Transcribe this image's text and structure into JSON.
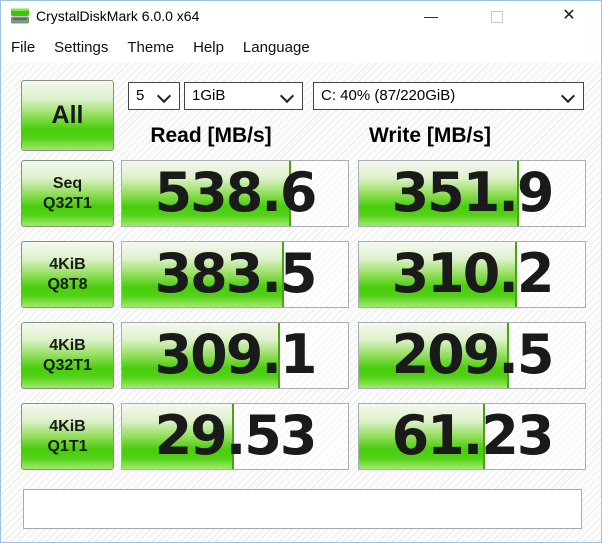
{
  "window": {
    "title": "CrystalDiskMark 6.0.0 x64",
    "minimize_glyph": "—",
    "close_glyph": "✕"
  },
  "menu": {
    "items": [
      "File",
      "Settings",
      "Theme",
      "Help",
      "Language"
    ]
  },
  "toolbar": {
    "all_label": "All",
    "test_count": "5",
    "test_size": "1GiB",
    "target_drive": "C: 40% (87/220GiB)"
  },
  "headers": {
    "read": "Read [MB/s]",
    "write": "Write [MB/s]"
  },
  "results": {
    "rows": [
      {
        "label1": "Seq",
        "label2": "Q32T1",
        "read": "538.6",
        "write": "351.9"
      },
      {
        "label1": "4KiB",
        "label2": "Q8T8",
        "read": "383.5",
        "write": "310.2"
      },
      {
        "label1": "4KiB",
        "label2": "Q32T1",
        "read": "309.1",
        "write": "209.5"
      },
      {
        "label1": "4KiB",
        "label2": "Q1T1",
        "read": "29.53",
        "write": "61.23"
      }
    ]
  },
  "status_bar": {
    "text": ""
  },
  "colors": {
    "accent_green": "#47ce0b",
    "fill_edge_green": "#48a313",
    "window_border_blue": "#9cc3e0"
  }
}
